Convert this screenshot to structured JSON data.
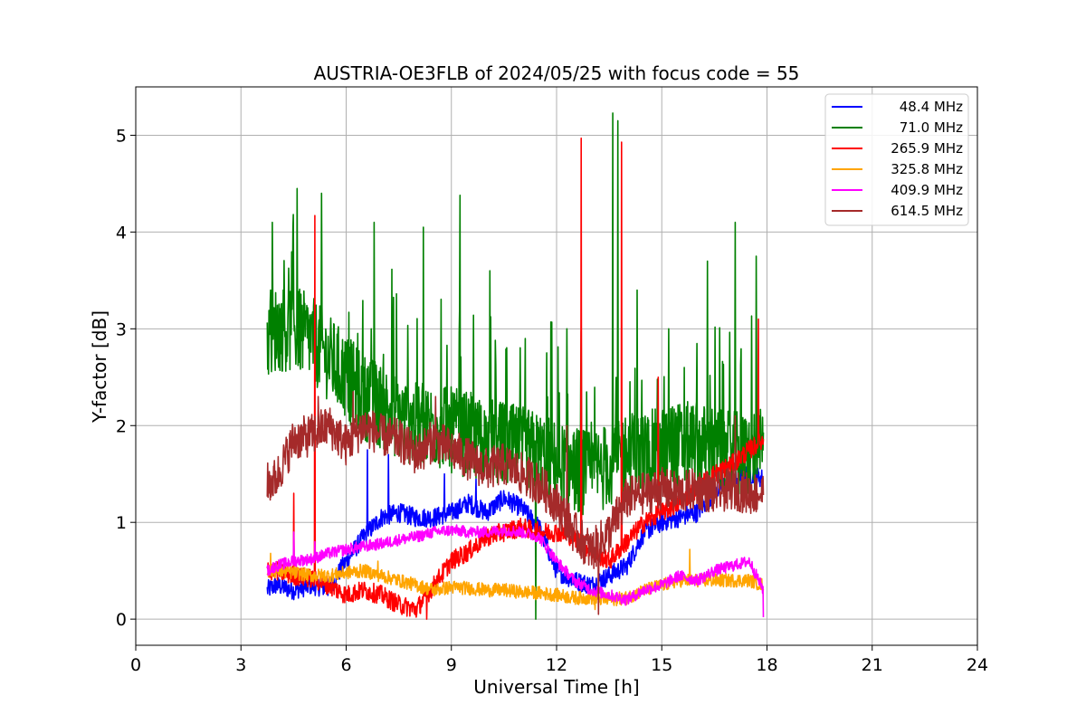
{
  "chart_data": {
    "type": "line",
    "title": "AUSTRIA-OE3FLB of 2024/05/25 with focus code = 55",
    "xlabel": "Universal Time [h]",
    "ylabel": "Y-factor [dB]",
    "xlim": [
      0,
      24
    ],
    "ylim": [
      -0.27,
      5.5
    ],
    "xticks": [
      0,
      3,
      6,
      9,
      12,
      15,
      18,
      21,
      24
    ],
    "yticks": [
      0,
      1,
      2,
      3,
      4,
      5
    ],
    "grid": true,
    "legend_position": "top-right",
    "series": [
      {
        "name": " 48.4 MHz",
        "color": "#0000ff",
        "x": [
          3.75,
          4.0,
          4.5,
          5.0,
          5.5,
          6.0,
          6.5,
          7.0,
          7.5,
          8.0,
          8.5,
          9.0,
          9.5,
          10.0,
          10.5,
          11.0,
          11.5,
          12.0,
          12.5,
          13.0,
          13.5,
          14.0,
          14.5,
          15.0,
          15.5,
          16.0,
          16.5,
          17.0,
          17.5,
          17.9
        ],
        "y": [
          0.3,
          0.35,
          0.3,
          0.35,
          0.32,
          0.6,
          0.85,
          1.05,
          1.1,
          1.05,
          1.05,
          1.1,
          1.2,
          1.1,
          1.25,
          1.15,
          0.95,
          0.5,
          0.4,
          0.35,
          0.45,
          0.55,
          0.9,
          1.0,
          1.05,
          1.1,
          1.3,
          1.45,
          1.5,
          1.45
        ],
        "spikes": [
          [
            6.6,
            1.75
          ],
          [
            7.2,
            1.7
          ],
          [
            8.8,
            1.5
          ],
          [
            9.7,
            1.45
          ],
          [
            15.7,
            1.4
          ]
        ]
      },
      {
        "name": " 71.0 MHz",
        "color": "#008000",
        "x": [
          3.75,
          4.0,
          4.5,
          5.0,
          5.5,
          6.0,
          6.5,
          7.0,
          7.5,
          8.0,
          8.5,
          9.0,
          9.5,
          10.0,
          10.5,
          11.0,
          11.5,
          12.0,
          12.5,
          13.0,
          13.5,
          14.0,
          14.5,
          15.0,
          15.5,
          16.0,
          16.5,
          17.0,
          17.5,
          17.9
        ],
        "y": [
          2.9,
          3.0,
          3.0,
          2.9,
          2.7,
          2.5,
          2.3,
          2.2,
          2.1,
          2.0,
          2.0,
          1.95,
          1.9,
          1.85,
          1.8,
          1.75,
          1.7,
          1.6,
          1.55,
          1.5,
          1.6,
          1.7,
          1.7,
          1.75,
          1.8,
          1.8,
          1.75,
          1.7,
          1.7,
          1.75
        ],
        "spikes": [
          [
            3.9,
            4.1
          ],
          [
            4.6,
            4.45
          ],
          [
            5.3,
            4.4
          ],
          [
            6.8,
            4.1
          ],
          [
            8.2,
            4.05
          ],
          [
            9.25,
            4.38
          ],
          [
            10.1,
            3.6
          ],
          [
            11.1,
            2.9
          ],
          [
            12.3,
            3.0
          ],
          [
            13.6,
            5.23
          ],
          [
            13.75,
            5.15
          ],
          [
            14.3,
            3.4
          ],
          [
            15.2,
            3.0
          ],
          [
            16.3,
            3.7
          ],
          [
            17.1,
            4.1
          ],
          [
            17.7,
            3.75
          ],
          [
            11.4,
            0.0
          ]
        ]
      },
      {
        "name": "265.9 MHz",
        "color": "#ff0000",
        "x": [
          3.75,
          4.0,
          4.5,
          5.0,
          5.5,
          6.0,
          6.5,
          7.0,
          7.5,
          8.0,
          8.5,
          9.0,
          9.5,
          10.0,
          10.5,
          11.0,
          11.5,
          12.0,
          12.5,
          13.0,
          13.5,
          14.0,
          14.5,
          15.0,
          15.5,
          16.0,
          16.5,
          17.0,
          17.5,
          17.9
        ],
        "y": [
          0.5,
          0.5,
          0.45,
          0.42,
          0.35,
          0.25,
          0.3,
          0.25,
          0.15,
          0.1,
          0.35,
          0.6,
          0.7,
          0.85,
          0.9,
          0.95,
          0.9,
          0.9,
          0.85,
          0.7,
          0.6,
          0.8,
          1.0,
          1.1,
          1.2,
          1.35,
          1.5,
          1.6,
          1.75,
          1.85
        ],
        "spikes": [
          [
            4.5,
            1.3
          ],
          [
            5.1,
            4.17
          ],
          [
            12.7,
            4.97
          ],
          [
            13.85,
            4.93
          ],
          [
            17.75,
            3.1
          ],
          [
            8.3,
            0.0
          ],
          [
            14.9,
            2.5
          ]
        ]
      },
      {
        "name": "325.8 MHz",
        "color": "#ffa500",
        "x": [
          3.75,
          4.0,
          4.5,
          5.0,
          5.5,
          6.0,
          6.5,
          7.0,
          7.5,
          8.0,
          8.5,
          9.0,
          9.5,
          10.0,
          10.5,
          11.0,
          11.5,
          12.0,
          12.5,
          13.0,
          13.5,
          14.0,
          14.5,
          15.0,
          15.5,
          16.0,
          16.5,
          17.0,
          17.5,
          17.9
        ],
        "y": [
          0.5,
          0.5,
          0.48,
          0.45,
          0.45,
          0.48,
          0.5,
          0.45,
          0.4,
          0.35,
          0.3,
          0.33,
          0.32,
          0.3,
          0.3,
          0.28,
          0.27,
          0.25,
          0.22,
          0.22,
          0.2,
          0.22,
          0.3,
          0.35,
          0.4,
          0.4,
          0.4,
          0.4,
          0.4,
          0.35
        ],
        "spikes": [
          [
            3.85,
            0.68
          ],
          [
            6.9,
            0.6
          ],
          [
            13.1,
            0.1
          ],
          [
            15.8,
            0.72
          ]
        ]
      },
      {
        "name": "409.9 MHz",
        "color": "#ff00ff",
        "x": [
          3.75,
          4.0,
          4.5,
          5.0,
          5.5,
          6.0,
          6.5,
          7.0,
          7.5,
          8.0,
          8.5,
          9.0,
          9.5,
          10.0,
          10.5,
          11.0,
          11.5,
          12.0,
          12.5,
          13.0,
          13.5,
          14.0,
          14.5,
          15.0,
          15.5,
          16.0,
          16.5,
          17.0,
          17.5,
          17.9
        ],
        "y": [
          0.5,
          0.55,
          0.6,
          0.62,
          0.68,
          0.72,
          0.75,
          0.78,
          0.82,
          0.85,
          0.9,
          0.92,
          0.9,
          0.9,
          0.92,
          0.9,
          0.85,
          0.6,
          0.4,
          0.3,
          0.25,
          0.2,
          0.3,
          0.35,
          0.45,
          0.4,
          0.5,
          0.55,
          0.6,
          0.3
        ],
        "spikes": [
          [
            4.5,
            0.9
          ],
          [
            5.1,
            0.8
          ],
          [
            17.95,
            0.02
          ]
        ]
      },
      {
        "name": "614.5 MHz",
        "color": "#a52a2a",
        "x": [
          3.75,
          4.0,
          4.5,
          5.0,
          5.5,
          6.0,
          6.5,
          7.0,
          7.5,
          8.0,
          8.5,
          9.0,
          9.5,
          10.0,
          10.5,
          11.0,
          11.5,
          12.0,
          12.5,
          13.0,
          13.5,
          14.0,
          14.5,
          15.0,
          15.5,
          16.0,
          16.5,
          17.0,
          17.5,
          17.9
        ],
        "y": [
          1.4,
          1.45,
          1.85,
          1.9,
          2.0,
          1.8,
          2.0,
          1.9,
          1.85,
          1.7,
          1.85,
          1.75,
          1.65,
          1.55,
          1.6,
          1.5,
          1.4,
          1.2,
          0.9,
          0.7,
          0.9,
          1.25,
          1.3,
          1.35,
          1.3,
          1.35,
          1.3,
          1.35,
          1.3,
          1.3
        ],
        "spikes": [
          [
            5.2,
            2.3
          ],
          [
            6.2,
            2.35
          ],
          [
            8.55,
            2.3
          ],
          [
            13.2,
            0.05
          ],
          [
            12.3,
            2.0
          ],
          [
            17.1,
            2.1
          ]
        ]
      }
    ]
  }
}
